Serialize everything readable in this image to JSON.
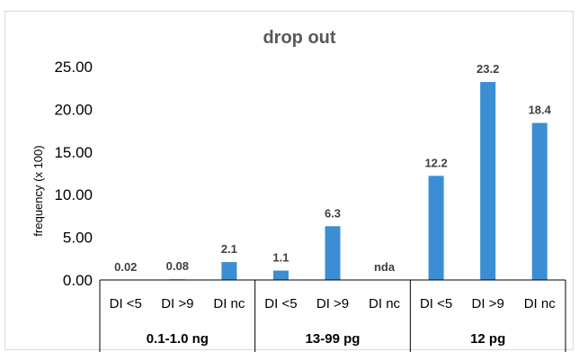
{
  "chart_data": {
    "type": "bar",
    "title": "drop out",
    "ylabel": "frequency (x 100)",
    "xlabel": "",
    "ylim": [
      0,
      25
    ],
    "yticks": [
      "0.00",
      "5.00",
      "10.00",
      "15.00",
      "20.00",
      "25.00"
    ],
    "grid": false,
    "legend": "none",
    "bar_color": "#3B8ED3",
    "categories": [
      "DI <5",
      "DI >9",
      "DI nc",
      "DI <5",
      "DI >9",
      "DI nc",
      "DI <5",
      "DI >9",
      "DI nc"
    ],
    "groups": [
      "0.1-1.0 ng",
      "13-99 pg",
      "12 pg"
    ],
    "values": [
      0.02,
      0.08,
      2.1,
      1.1,
      6.3,
      null,
      12.2,
      23.2,
      18.4
    ],
    "data_labels": [
      "0.02",
      "0.08",
      "2.1",
      "1.1",
      "6.3",
      "nda",
      "12.2",
      "23.2",
      "18.4"
    ]
  }
}
